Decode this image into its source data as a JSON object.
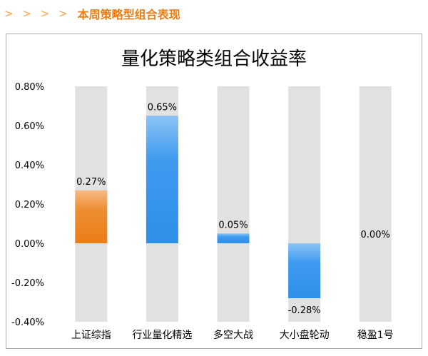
{
  "header": {
    "chevrons": "> > > >",
    "title": "本周策略型组合表现"
  },
  "colors": {
    "accent": "#ea7d16",
    "highlight_bar": "#ea7d16",
    "bar": "#2e90e8",
    "track": "#e1e1e1"
  },
  "chart_data": {
    "type": "bar",
    "title": "量化策略类组合收益率",
    "categories": [
      "上证综指",
      "行业量化精选",
      "多空大战",
      "大小盘轮动",
      "稳盈1号"
    ],
    "values": [
      0.27,
      0.65,
      0.05,
      -0.28,
      0.0
    ],
    "value_labels": [
      "0.27%",
      "0.65%",
      "0.05%",
      "-0.28%",
      "0.00%"
    ],
    "highlight_index": 0,
    "ylim": [
      -0.4,
      0.8
    ],
    "yticks": [
      0.8,
      0.6,
      0.4,
      0.2,
      0.0,
      -0.2,
      -0.4
    ],
    "ytick_labels": [
      "0.80%",
      "0.60%",
      "0.40%",
      "0.20%",
      "0.00%",
      "-0.20%",
      "-0.40%"
    ],
    "xlabel": "",
    "ylabel": "",
    "grid": false,
    "legend": "none"
  }
}
